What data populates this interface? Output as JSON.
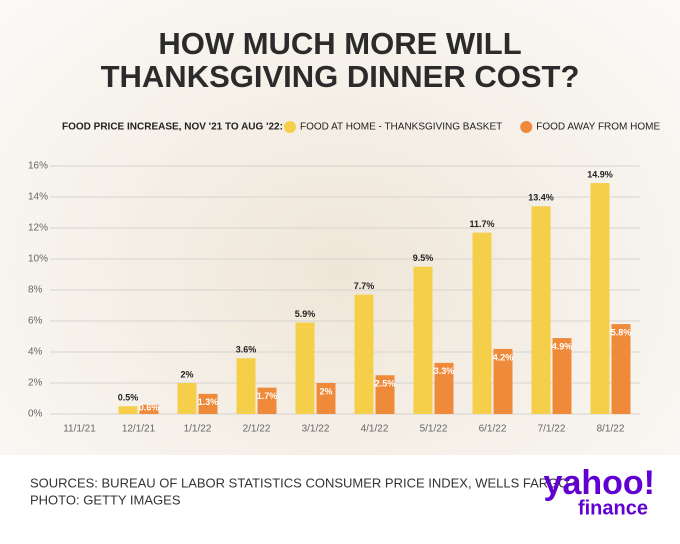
{
  "chart_data": {
    "type": "bar",
    "title": [
      "HOW MUCH MORE WILL",
      "THANKSGIVING DINNER COST?"
    ],
    "legend_title": "FOOD PRICE INCREASE, NOV '21 TO AUG '22:",
    "categories": [
      "11/1/21",
      "12/1/21",
      "1/1/22",
      "2/1/22",
      "3/1/22",
      "4/1/22",
      "5/1/22",
      "6/1/22",
      "7/1/22",
      "8/1/22"
    ],
    "series": [
      {
        "name": "FOOD AT HOME - THANKSGIVING BASKET",
        "color": "#f5cf4a",
        "values": [
          null,
          0.5,
          2,
          3.6,
          5.9,
          7.7,
          9.5,
          11.7,
          13.4,
          14.9
        ],
        "value_labels": [
          null,
          "0.5%",
          "2%",
          "3.6%",
          "5.9%",
          "7.7%",
          "9.5%",
          "11.7%",
          "13.4%",
          "14.9%"
        ]
      },
      {
        "name": "FOOD AWAY FROM HOME",
        "color": "#ee8a3a",
        "values": [
          null,
          0.6,
          1.3,
          1.7,
          2,
          2.5,
          3.3,
          4.2,
          4.9,
          5.8
        ],
        "value_labels": [
          null,
          "0.6%",
          "1.3%",
          "1.7%",
          "2%",
          "2.5%",
          "3.3%",
          "4.2%",
          "4.9%",
          "5.8%"
        ]
      }
    ],
    "ylim": [
      0,
      16
    ],
    "yticks": [
      {
        "value": 0,
        "label": "0%"
      },
      {
        "value": 2,
        "label": "2%"
      },
      {
        "value": 4,
        "label": "4%"
      },
      {
        "value": 6,
        "label": "6%"
      },
      {
        "value": 8,
        "label": "8%"
      },
      {
        "value": 10,
        "label": "10%"
      },
      {
        "value": 12,
        "label": "12%"
      },
      {
        "value": 14,
        "label": "14%"
      },
      {
        "value": 16,
        "label": "16%"
      }
    ],
    "grid": true,
    "sources": [
      "SOURCES: BUREAU OF LABOR STATISTICS CONSUMER PRICE INDEX, WELLS FARGO •",
      "PHOTO: GETTY IMAGES"
    ],
    "logo": [
      "yahoo!",
      "finance"
    ]
  }
}
